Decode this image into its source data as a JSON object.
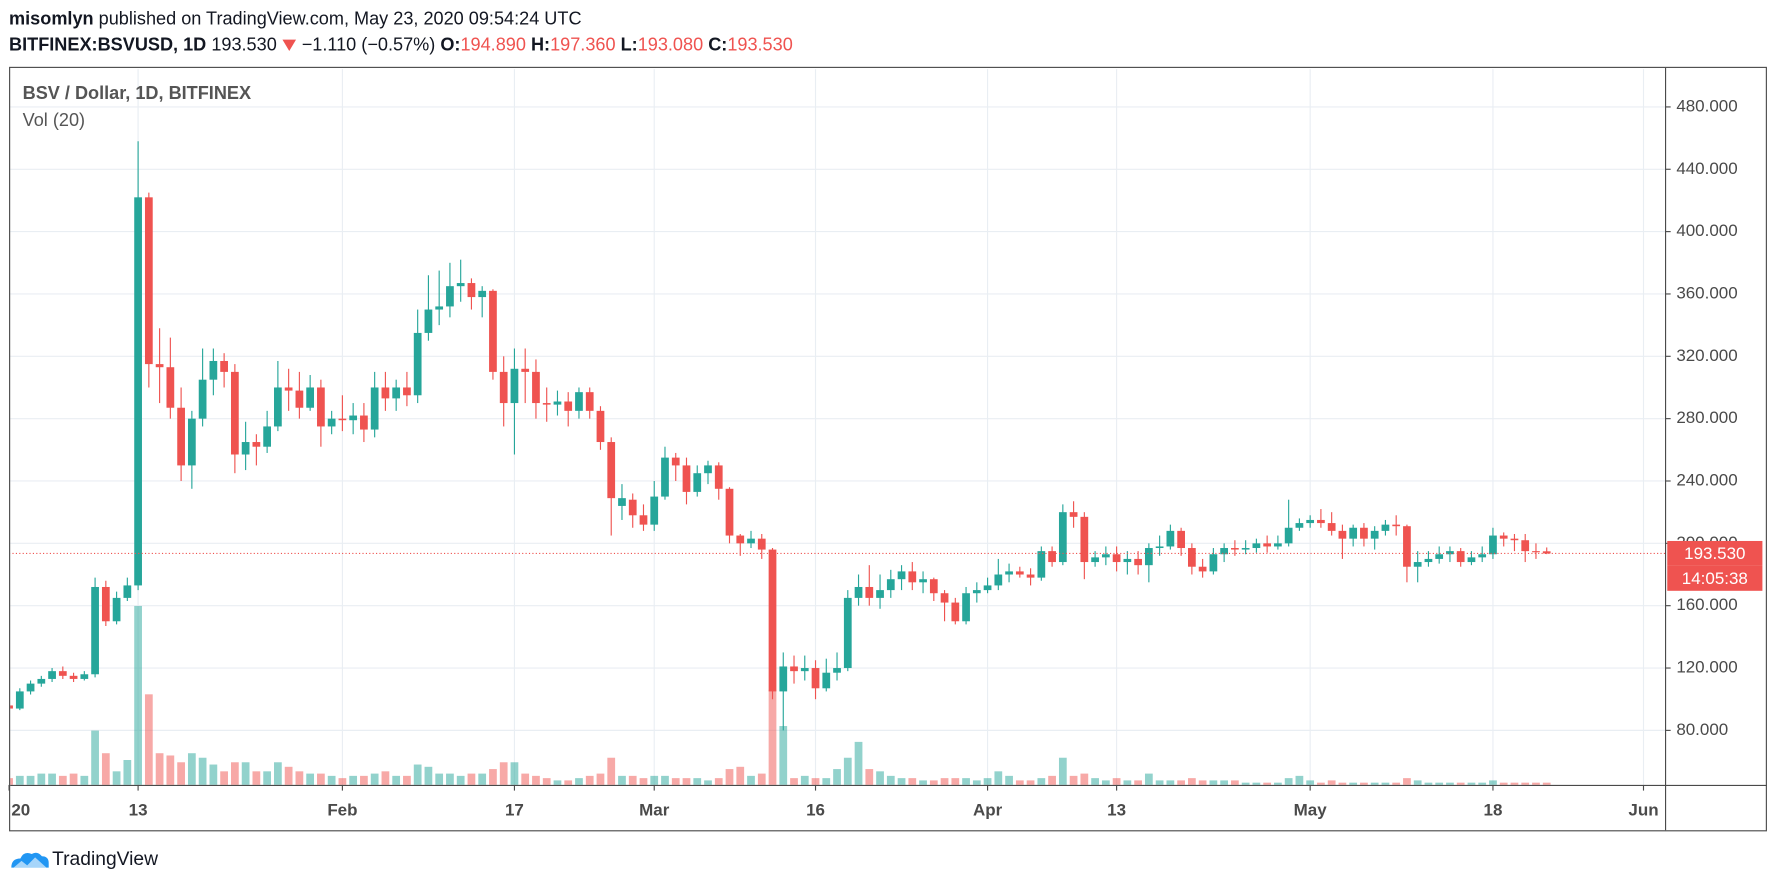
{
  "header": {
    "author": "misomlyn",
    "published": "published on TradingView.com, May 23, 2020 09:54:24 UTC",
    "symbol": "BITFINEX:BSVUSD, 1D",
    "price": "193.530",
    "change": "−1.110 (−0.57%)",
    "o_label": "O:",
    "o": "194.890",
    "h_label": "H:",
    "h": "197.360",
    "l_label": "L:",
    "l": "193.080",
    "c_label": "C:",
    "c": "193.530"
  },
  "footer": {
    "brand": "TradingView"
  },
  "chart_data": {
    "type": "candlestick",
    "title": "BSV / Dollar, 1D, BITFINEX",
    "volume_title": "Vol (20)",
    "up_color": "#26a69a",
    "down_color": "#ef5350",
    "grid": true,
    "x": [
      "2020-01-01",
      "2020-01-02",
      "2020-01-03",
      "2020-01-04",
      "2020-01-05",
      "2020-01-06",
      "2020-01-07",
      "2020-01-08",
      "2020-01-09",
      "2020-01-10",
      "2020-01-11",
      "2020-01-12",
      "2020-01-13",
      "2020-01-14",
      "2020-01-15",
      "2020-01-16",
      "2020-01-17",
      "2020-01-18",
      "2020-01-19",
      "2020-01-20",
      "2020-01-21",
      "2020-01-22",
      "2020-01-23",
      "2020-01-24",
      "2020-01-25",
      "2020-01-26",
      "2020-01-27",
      "2020-01-28",
      "2020-01-29",
      "2020-01-30",
      "2020-01-31",
      "2020-02-01",
      "2020-02-02",
      "2020-02-03",
      "2020-02-04",
      "2020-02-05",
      "2020-02-06",
      "2020-02-07",
      "2020-02-08",
      "2020-02-09",
      "2020-02-10",
      "2020-02-11",
      "2020-02-12",
      "2020-02-13",
      "2020-02-14",
      "2020-02-15",
      "2020-02-16",
      "2020-02-17",
      "2020-02-18",
      "2020-02-19",
      "2020-02-20",
      "2020-02-21",
      "2020-02-22",
      "2020-02-23",
      "2020-02-24",
      "2020-02-25",
      "2020-02-26",
      "2020-02-27",
      "2020-02-28",
      "2020-02-29",
      "2020-03-01",
      "2020-03-02",
      "2020-03-03",
      "2020-03-04",
      "2020-03-05",
      "2020-03-06",
      "2020-03-07",
      "2020-03-08",
      "2020-03-09",
      "2020-03-10",
      "2020-03-11",
      "2020-03-12",
      "2020-03-13",
      "2020-03-14",
      "2020-03-15",
      "2020-03-16",
      "2020-03-17",
      "2020-03-18",
      "2020-03-19",
      "2020-03-20",
      "2020-03-21",
      "2020-03-22",
      "2020-03-23",
      "2020-03-24",
      "2020-03-25",
      "2020-03-26",
      "2020-03-27",
      "2020-03-28",
      "2020-03-29",
      "2020-03-30",
      "2020-03-31",
      "2020-04-01",
      "2020-04-02",
      "2020-04-03",
      "2020-04-04",
      "2020-04-05",
      "2020-04-06",
      "2020-04-07",
      "2020-04-08",
      "2020-04-09",
      "2020-04-10",
      "2020-04-11",
      "2020-04-12",
      "2020-04-13",
      "2020-04-14",
      "2020-04-15",
      "2020-04-16",
      "2020-04-17",
      "2020-04-18",
      "2020-04-19",
      "2020-04-20",
      "2020-04-21",
      "2020-04-22",
      "2020-04-23",
      "2020-04-24",
      "2020-04-25",
      "2020-04-26",
      "2020-04-27",
      "2020-04-28",
      "2020-04-29",
      "2020-04-30",
      "2020-05-01",
      "2020-05-02",
      "2020-05-03",
      "2020-05-04",
      "2020-05-05",
      "2020-05-06",
      "2020-05-07",
      "2020-05-08",
      "2020-05-09",
      "2020-05-10",
      "2020-05-11",
      "2020-05-12",
      "2020-05-13",
      "2020-05-14",
      "2020-05-15",
      "2020-05-16",
      "2020-05-17",
      "2020-05-18",
      "2020-05-19",
      "2020-05-20",
      "2020-05-21",
      "2020-05-22",
      "2020-05-23"
    ],
    "open": [
      96,
      94,
      105,
      110,
      113,
      118,
      115,
      113,
      116,
      172,
      150,
      165,
      173,
      422,
      315,
      313,
      287,
      250,
      280,
      305,
      317,
      310,
      257,
      265,
      262,
      275,
      300,
      298,
      287,
      300,
      275,
      280,
      279,
      282,
      273,
      300,
      293,
      300,
      295,
      335,
      350,
      352,
      365,
      367,
      358,
      362,
      310,
      290,
      312,
      310,
      290,
      289,
      291,
      285,
      297,
      285,
      265,
      224,
      228,
      218,
      212,
      230,
      255,
      250,
      233,
      245,
      250,
      235,
      205,
      200,
      203,
      196,
      105,
      121,
      118,
      120,
      107,
      117,
      120,
      165,
      172,
      165,
      170,
      177,
      182,
      175,
      177,
      168,
      162,
      150,
      168,
      170,
      173,
      180,
      182,
      180,
      178,
      195,
      188,
      220,
      217,
      188,
      191,
      193,
      188,
      190,
      186,
      197,
      198,
      208,
      197,
      185,
      182,
      193,
      197,
      196,
      197,
      200,
      198,
      200,
      210,
      213,
      215,
      213,
      208,
      203,
      210,
      203,
      208,
      212,
      211,
      185,
      188,
      190,
      193,
      195,
      188,
      191,
      193,
      205,
      203,
      202,
      195,
      194.89
    ],
    "high": [
      98,
      107,
      112,
      115,
      120,
      121,
      117,
      118,
      178,
      176,
      169,
      178,
      458,
      425,
      338,
      332,
      300,
      285,
      325,
      325,
      322,
      315,
      278,
      270,
      285,
      317,
      312,
      310,
      308,
      305,
      285,
      295,
      290,
      290,
      310,
      310,
      305,
      310,
      350,
      372,
      375,
      380,
      382,
      370,
      365,
      363,
      320,
      325,
      325,
      318,
      300,
      298,
      297,
      300,
      300,
      288,
      268,
      238,
      232,
      225,
      240,
      262,
      258,
      255,
      250,
      253,
      252,
      236,
      206,
      208,
      206,
      197,
      130,
      128,
      128,
      125,
      126,
      130,
      170,
      180,
      186,
      180,
      183,
      186,
      188,
      182,
      178,
      170,
      165,
      172,
      175,
      178,
      190,
      187,
      185,
      184,
      198,
      198,
      225,
      227,
      220,
      195,
      198,
      198,
      195,
      195,
      200,
      205,
      212,
      210,
      200,
      190,
      197,
      200,
      202,
      202,
      203,
      205,
      205,
      228,
      216,
      218,
      222,
      220,
      212,
      212,
      213,
      211,
      215,
      218,
      212,
      195,
      195,
      198,
      198,
      197,
      195,
      198,
      210,
      207,
      206,
      206,
      200,
      197.36
    ],
    "low": [
      92,
      93,
      103,
      108,
      111,
      113,
      111,
      112,
      114,
      147,
      148,
      163,
      170,
      300,
      290,
      280,
      240,
      235,
      275,
      295,
      300,
      245,
      247,
      250,
      258,
      272,
      285,
      280,
      285,
      262,
      270,
      272,
      270,
      265,
      268,
      285,
      285,
      288,
      290,
      330,
      340,
      345,
      355,
      350,
      345,
      305,
      275,
      257,
      290,
      280,
      278,
      282,
      275,
      280,
      280,
      260,
      205,
      215,
      210,
      208,
      208,
      228,
      240,
      225,
      230,
      238,
      228,
      200,
      192,
      197,
      190,
      100,
      80,
      110,
      112,
      100,
      105,
      112,
      118,
      160,
      160,
      158,
      165,
      170,
      170,
      168,
      163,
      150,
      148,
      148,
      162,
      168,
      170,
      175,
      178,
      173,
      176,
      185,
      186,
      210,
      177,
      185,
      186,
      182,
      180,
      180,
      175,
      192,
      196,
      192,
      180,
      178,
      180,
      188,
      192,
      193,
      194,
      194,
      196,
      198,
      208,
      210,
      210,
      205,
      190,
      198,
      198,
      196,
      205,
      205,
      175,
      175,
      185,
      187,
      188,
      185,
      186,
      188,
      190,
      198,
      195,
      188,
      190,
      193.08
    ],
    "close": [
      94,
      105,
      110,
      113,
      118,
      115,
      113,
      116,
      172,
      150,
      165,
      173,
      422,
      315,
      313,
      287,
      250,
      280,
      305,
      317,
      310,
      257,
      265,
      262,
      275,
      300,
      298,
      287,
      300,
      275,
      280,
      279,
      282,
      273,
      300,
      293,
      300,
      295,
      335,
      350,
      352,
      365,
      367,
      358,
      362,
      310,
      290,
      312,
      310,
      290,
      289,
      291,
      285,
      297,
      285,
      265,
      229,
      229,
      218,
      212,
      230,
      255,
      250,
      233,
      245,
      250,
      235,
      205,
      200,
      203,
      196,
      105,
      121,
      118,
      120,
      107,
      117,
      120,
      165,
      172,
      165,
      170,
      177,
      182,
      175,
      177,
      168,
      162,
      150,
      168,
      170,
      173,
      180,
      182,
      180,
      178,
      195,
      188,
      220,
      217,
      188,
      191,
      193,
      188,
      190,
      186,
      197,
      198,
      208,
      197,
      185,
      182,
      193,
      197,
      196,
      197,
      200,
      198,
      200,
      210,
      213,
      215,
      213,
      208,
      203,
      210,
      203,
      208,
      212,
      211,
      185,
      188,
      190,
      193,
      195,
      188,
      191,
      193,
      205,
      203,
      202,
      195,
      194.64,
      193.53
    ],
    "volume": [
      3,
      4,
      4,
      5,
      5,
      4,
      5,
      4,
      24,
      14,
      6,
      11,
      79,
      40,
      14,
      13,
      10,
      14,
      12,
      9,
      6,
      10,
      10,
      6,
      6,
      10,
      8,
      6,
      5,
      5,
      4,
      3,
      4,
      4,
      5,
      6,
      4,
      4,
      9,
      8,
      5,
      5,
      4,
      5,
      5,
      7,
      10,
      10,
      5,
      4,
      3,
      2,
      2,
      3,
      4,
      5,
      12,
      4,
      4,
      3,
      4,
      4,
      3,
      3,
      3,
      2,
      3,
      7,
      8,
      4,
      5,
      42,
      26,
      3,
      4,
      3,
      3,
      7,
      12,
      19,
      7,
      6,
      4,
      3,
      3,
      2,
      2,
      3,
      3,
      3,
      2,
      3,
      6,
      4,
      2,
      2,
      3,
      4,
      12,
      4,
      5,
      3,
      2,
      3,
      2,
      2,
      5,
      2,
      2,
      2,
      3,
      2,
      2,
      2,
      2,
      1,
      1,
      1,
      1,
      3,
      4,
      2,
      1,
      2,
      1,
      1,
      1,
      1,
      1,
      1,
      3,
      2,
      1,
      1,
      1,
      1,
      1,
      1,
      2,
      1,
      1,
      1,
      1,
      1
    ],
    "volume_lim": [
      0,
      100
    ],
    "xlim": [
      "2020-01-01",
      "2020-06-03"
    ],
    "xticks": [
      {
        "value": "2020-01-01",
        "label": "20"
      },
      {
        "value": "2020-01-13",
        "label": "13"
      },
      {
        "value": "2020-02-01",
        "label": "Feb"
      },
      {
        "value": "2020-02-17",
        "label": "17"
      },
      {
        "value": "2020-03-01",
        "label": "Mar"
      },
      {
        "value": "2020-03-16",
        "label": "16"
      },
      {
        "value": "2020-04-01",
        "label": "Apr"
      },
      {
        "value": "2020-04-13",
        "label": "13"
      },
      {
        "value": "2020-05-01",
        "label": "May"
      },
      {
        "value": "2020-05-18",
        "label": "18"
      },
      {
        "value": "2020-06-01",
        "label": "Jun"
      }
    ],
    "ylim": [
      45,
      505
    ],
    "yticks": [
      {
        "value": 80,
        "label": "80.000"
      },
      {
        "value": 120,
        "label": "120.000"
      },
      {
        "value": 160,
        "label": "160.000"
      },
      {
        "value": 200,
        "label": "200.000"
      },
      {
        "value": 240,
        "label": "240.000"
      },
      {
        "value": 280,
        "label": "280.000"
      },
      {
        "value": 320,
        "label": "320.000"
      },
      {
        "value": 360,
        "label": "360.000"
      },
      {
        "value": 400,
        "label": "400.000"
      },
      {
        "value": 440,
        "label": "440.000"
      },
      {
        "value": 480,
        "label": "480.000"
      }
    ],
    "last_price": {
      "value": 193.53,
      "label": "193.530"
    },
    "countdown": "14:05:38"
  }
}
